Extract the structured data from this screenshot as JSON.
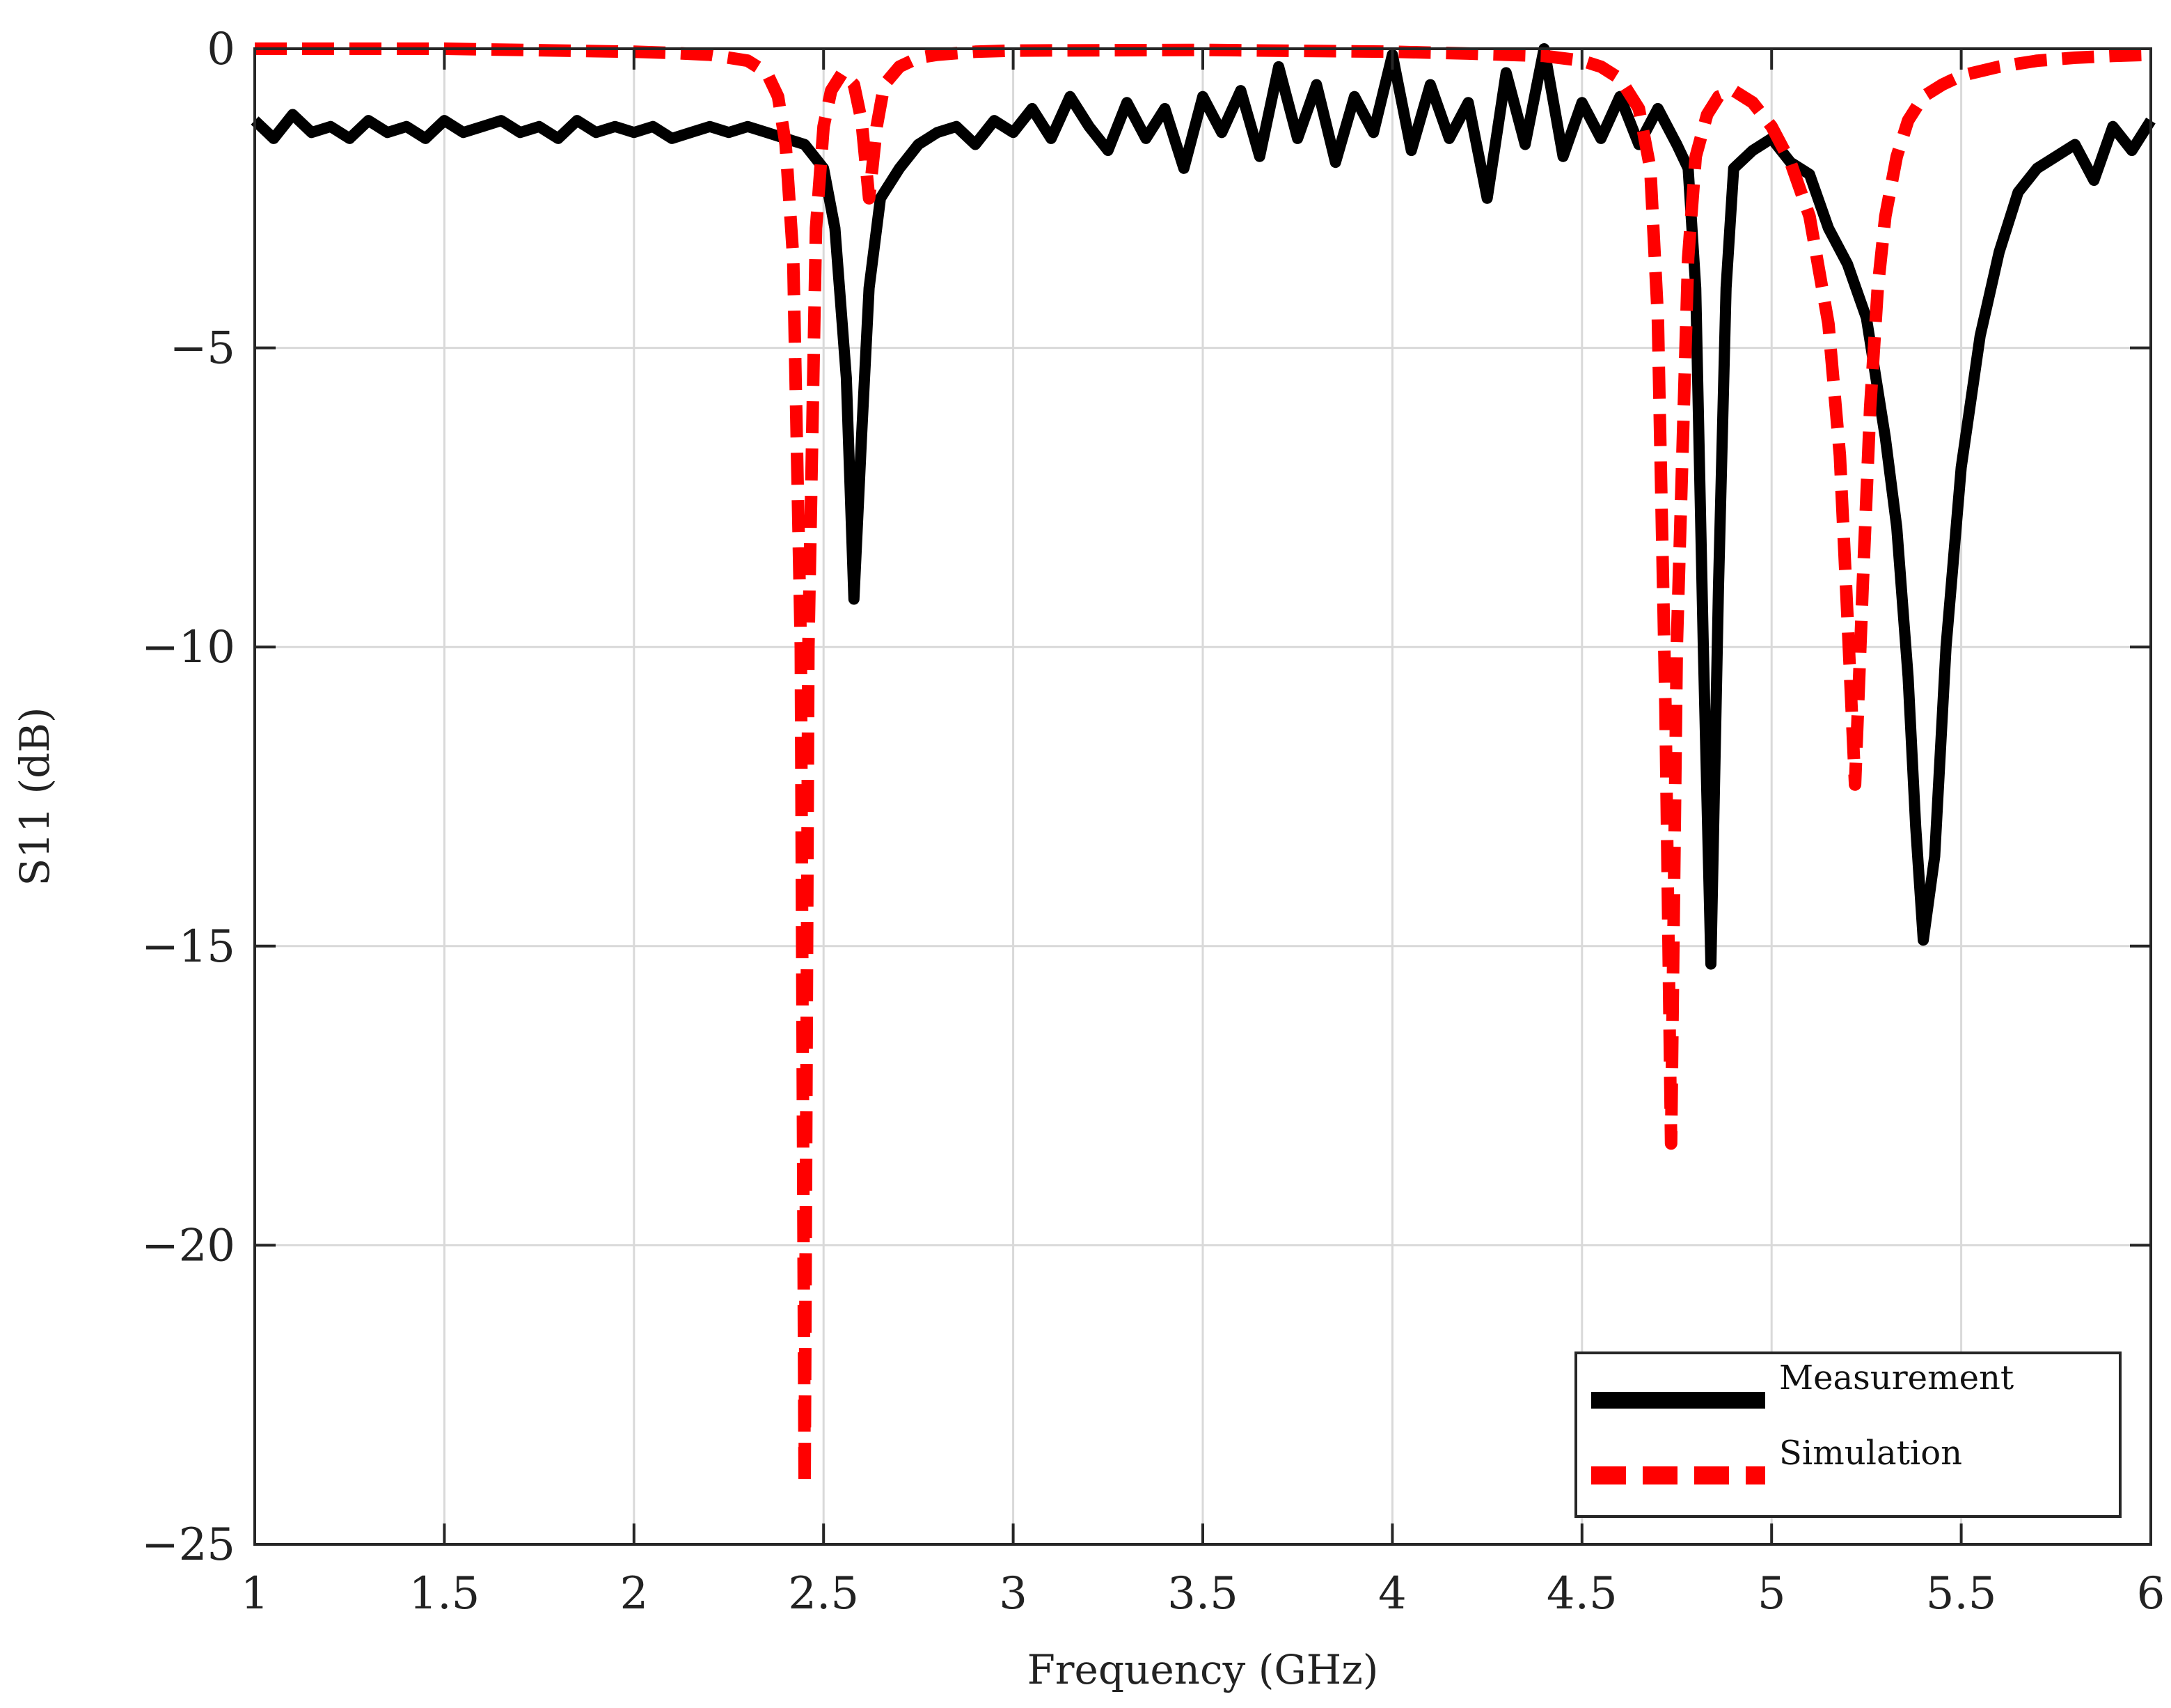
{
  "chart_data": {
    "type": "line",
    "title": "",
    "xlabel": "Frequency (GHz)",
    "ylabel": "S11 (dB)",
    "xlim": [
      1,
      6
    ],
    "ylim": [
      -25,
      0
    ],
    "xticks": [
      1,
      1.5,
      2,
      2.5,
      3,
      3.5,
      4,
      4.5,
      5,
      5.5,
      6
    ],
    "xtick_labels": [
      "1",
      "1.5",
      "2",
      "2.5",
      "3",
      "3.5",
      "4",
      "4.5",
      "5",
      "5.5",
      "6"
    ],
    "yticks": [
      0,
      -5,
      -10,
      -15,
      -20,
      -25
    ],
    "ytick_labels": [
      "0",
      "−5",
      "−10",
      "−15",
      "−20",
      "−25"
    ],
    "grid": true,
    "legend_position": "bottom-right",
    "series": [
      {
        "name": "Measurement",
        "color": "#000000",
        "style": "solid",
        "x": [
          1.0,
          1.05,
          1.1,
          1.15,
          1.2,
          1.25,
          1.3,
          1.35,
          1.4,
          1.45,
          1.5,
          1.55,
          1.6,
          1.65,
          1.7,
          1.75,
          1.8,
          1.85,
          1.9,
          1.95,
          2.0,
          2.05,
          2.1,
          2.15,
          2.2,
          2.25,
          2.3,
          2.35,
          2.4,
          2.45,
          2.5,
          2.53,
          2.56,
          2.58,
          2.6,
          2.62,
          2.65,
          2.7,
          2.75,
          2.8,
          2.85,
          2.9,
          2.95,
          3.0,
          3.05,
          3.1,
          3.15,
          3.2,
          3.25,
          3.3,
          3.35,
          3.4,
          3.45,
          3.5,
          3.55,
          3.6,
          3.65,
          3.7,
          3.75,
          3.8,
          3.85,
          3.9,
          3.95,
          4.0,
          4.05,
          4.1,
          4.15,
          4.2,
          4.25,
          4.3,
          4.35,
          4.4,
          4.45,
          4.5,
          4.55,
          4.6,
          4.65,
          4.7,
          4.75,
          4.78,
          4.8,
          4.82,
          4.84,
          4.86,
          4.88,
          4.9,
          4.95,
          5.0,
          5.05,
          5.1,
          5.15,
          5.2,
          5.25,
          5.3,
          5.33,
          5.36,
          5.38,
          5.4,
          5.43,
          5.46,
          5.5,
          5.55,
          5.6,
          5.65,
          5.7,
          5.75,
          5.8,
          5.85,
          5.9,
          5.95,
          6.0
        ],
        "y": [
          -1.2,
          -1.5,
          -1.1,
          -1.4,
          -1.3,
          -1.5,
          -1.2,
          -1.4,
          -1.3,
          -1.5,
          -1.2,
          -1.4,
          -1.3,
          -1.2,
          -1.4,
          -1.3,
          -1.5,
          -1.2,
          -1.4,
          -1.3,
          -1.4,
          -1.3,
          -1.5,
          -1.4,
          -1.3,
          -1.4,
          -1.3,
          -1.4,
          -1.5,
          -1.6,
          -2.0,
          -3.0,
          -5.5,
          -9.2,
          -6.5,
          -4.0,
          -2.5,
          -2.0,
          -1.6,
          -1.4,
          -1.3,
          -1.6,
          -1.2,
          -1.4,
          -1.0,
          -1.5,
          -0.8,
          -1.3,
          -1.7,
          -0.9,
          -1.5,
          -1.0,
          -2.0,
          -0.8,
          -1.4,
          -0.7,
          -1.8,
          -0.3,
          -1.5,
          -0.6,
          -1.9,
          -0.8,
          -1.4,
          -0.1,
          -1.7,
          -0.6,
          -1.5,
          -0.9,
          -2.5,
          -0.4,
          -1.6,
          0.0,
          -1.8,
          -0.9,
          -1.5,
          -0.8,
          -1.6,
          -1.0,
          -1.6,
          -2.0,
          -4.0,
          -10.0,
          -15.3,
          -9.0,
          -4.0,
          -2.0,
          -1.7,
          -1.5,
          -1.9,
          -2.1,
          -3.0,
          -3.6,
          -4.5,
          -6.5,
          -8.0,
          -10.5,
          -13.0,
          -14.9,
          -13.5,
          -10.0,
          -7.0,
          -4.8,
          -3.4,
          -2.4,
          -2.0,
          -1.8,
          -1.6,
          -2.2,
          -1.3,
          -1.7,
          -1.2
        ]
      },
      {
        "name": "Simulation",
        "color": "#ff0000",
        "style": "dashed",
        "x": [
          1.0,
          1.5,
          2.0,
          2.1,
          2.2,
          2.3,
          2.35,
          2.38,
          2.4,
          2.42,
          2.44,
          2.45,
          2.46,
          2.48,
          2.5,
          2.52,
          2.55,
          2.58,
          2.6,
          2.62,
          2.64,
          2.66,
          2.7,
          2.75,
          2.8,
          2.9,
          3.0,
          3.5,
          4.0,
          4.2,
          4.4,
          4.5,
          4.55,
          4.6,
          4.65,
          4.68,
          4.7,
          4.72,
          4.735,
          4.75,
          4.78,
          4.8,
          4.83,
          4.86,
          4.9,
          4.95,
          5.0,
          5.05,
          5.1,
          5.15,
          5.18,
          5.2,
          5.22,
          5.24,
          5.26,
          5.28,
          5.3,
          5.33,
          5.36,
          5.4,
          5.45,
          5.5,
          5.6,
          5.7,
          5.8,
          5.9,
          6.0
        ],
        "y": [
          0.0,
          0.0,
          -0.05,
          -0.07,
          -0.1,
          -0.2,
          -0.4,
          -0.8,
          -1.6,
          -3.5,
          -10.0,
          -24.0,
          -10.0,
          -3.0,
          -1.3,
          -0.7,
          -0.4,
          -0.6,
          -1.2,
          -2.5,
          -1.3,
          -0.6,
          -0.3,
          -0.15,
          -0.1,
          -0.05,
          -0.03,
          -0.02,
          -0.05,
          -0.08,
          -0.12,
          -0.2,
          -0.3,
          -0.5,
          -1.0,
          -2.0,
          -4.5,
          -11.0,
          -18.3,
          -10.0,
          -3.5,
          -1.8,
          -1.1,
          -0.8,
          -0.7,
          -0.9,
          -1.3,
          -1.9,
          -2.8,
          -4.6,
          -6.8,
          -9.5,
          -12.3,
          -9.0,
          -6.0,
          -4.0,
          -2.8,
          -1.8,
          -1.2,
          -0.8,
          -0.6,
          -0.45,
          -0.3,
          -0.2,
          -0.15,
          -0.12,
          -0.1
        ]
      }
    ]
  }
}
